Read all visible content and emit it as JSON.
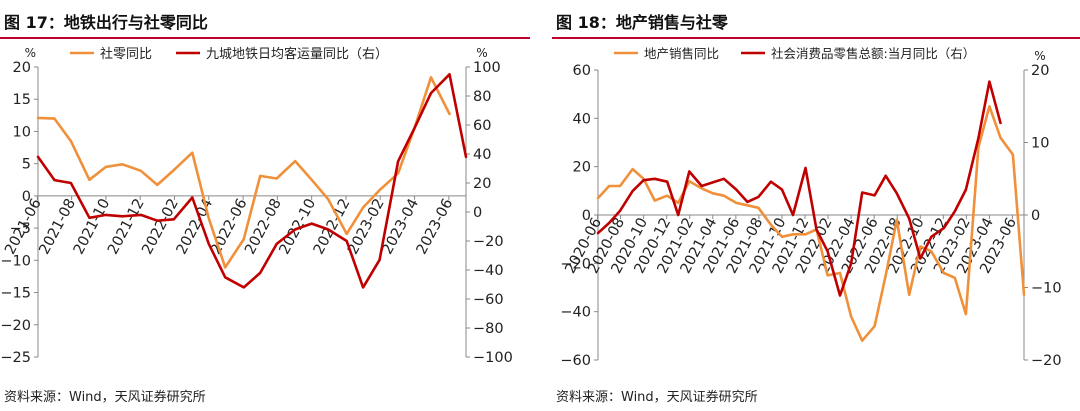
{
  "panels": [
    {
      "title": "图 17：地铁出行与社零同比",
      "source": "资料来源：Wind，天风证券研究所"
    },
    {
      "title": "图 18：地产销售与社零",
      "source": "资料来源：Wind，天风证券研究所"
    }
  ],
  "chart_data": [
    {
      "type": "line",
      "title": "图 17：地铁出行与社零同比",
      "x_tick_labels": [
        "2021-06",
        "2021-08",
        "2021-10",
        "2021-12",
        "2022-02",
        "2022-04",
        "2022-06",
        "2022-08",
        "2022-10",
        "2022-12",
        "2023-02",
        "2023-04",
        "2023-06"
      ],
      "x_range": [
        2021.42,
        2023.5
      ],
      "y_left": {
        "unit": "%",
        "ticks": [
          20,
          15,
          10,
          5,
          0,
          -5,
          -10,
          -15,
          -20,
          -25
        ],
        "range": [
          -25,
          20
        ]
      },
      "y_right": {
        "unit": "%",
        "ticks": [
          100,
          80,
          60,
          40,
          20,
          0,
          -20,
          -40,
          -60,
          -80,
          -100
        ],
        "range": [
          -100,
          100
        ]
      },
      "legend_position": "top-center",
      "series": [
        {
          "name": "社零同比",
          "axis": "left",
          "color": "#f0903a",
          "points": [
            [
              2021.42,
              12.1
            ],
            [
              2021.5,
              12.0
            ],
            [
              2021.58,
              8.5
            ],
            [
              2021.67,
              2.5
            ],
            [
              2021.75,
              4.5
            ],
            [
              2021.83,
              4.9
            ],
            [
              2021.92,
              3.9
            ],
            [
              2022.0,
              1.7
            ],
            [
              2022.08,
              4.0
            ],
            [
              2022.17,
              6.7
            ],
            [
              2022.25,
              -3.5
            ],
            [
              2022.33,
              -11.1
            ],
            [
              2022.42,
              -6.7
            ],
            [
              2022.5,
              3.1
            ],
            [
              2022.58,
              2.7
            ],
            [
              2022.67,
              5.4
            ],
            [
              2022.75,
              2.5
            ],
            [
              2022.83,
              -0.5
            ],
            [
              2022.92,
              -5.9
            ],
            [
              2023.0,
              -1.8
            ],
            [
              2023.08,
              0.9
            ],
            [
              2023.17,
              3.5
            ],
            [
              2023.25,
              10.6
            ],
            [
              2023.33,
              18.4
            ],
            [
              2023.42,
              12.7
            ]
          ]
        },
        {
          "name": "九城地铁日均客运量同比（右）",
          "axis": "right",
          "color": "#c00000",
          "points": [
            [
              2021.42,
              38
            ],
            [
              2021.5,
              22
            ],
            [
              2021.58,
              20
            ],
            [
              2021.67,
              -4
            ],
            [
              2021.75,
              -2
            ],
            [
              2021.83,
              -3
            ],
            [
              2021.92,
              -2
            ],
            [
              2022.0,
              -6
            ],
            [
              2022.08,
              -5
            ],
            [
              2022.17,
              10
            ],
            [
              2022.25,
              -22
            ],
            [
              2022.33,
              -45
            ],
            [
              2022.42,
              -52
            ],
            [
              2022.5,
              -42
            ],
            [
              2022.58,
              -22
            ],
            [
              2022.67,
              -12
            ],
            [
              2022.75,
              -8
            ],
            [
              2022.83,
              -12
            ],
            [
              2022.92,
              -20
            ],
            [
              2023.0,
              -52
            ],
            [
              2023.08,
              -33
            ],
            [
              2023.17,
              35
            ],
            [
              2023.25,
              58
            ],
            [
              2023.33,
              82
            ],
            [
              2023.42,
              95
            ],
            [
              2023.5,
              38
            ]
          ]
        }
      ]
    },
    {
      "type": "line",
      "title": "图 18：地产销售与社零",
      "x_tick_labels": [
        "2020-06",
        "2020-08",
        "2020-10",
        "2020-12",
        "2021-02",
        "2021-04",
        "2021-06",
        "2021-08",
        "2021-10",
        "2021-12",
        "2022-02",
        "2022-04",
        "2022-06",
        "2022-08",
        "2022-10",
        "2022-12",
        "2023-02",
        "2023-04",
        "2023-06"
      ],
      "x_range": [
        2020.42,
        2023.5
      ],
      "y_left": {
        "unit": "",
        "ticks": [
          60,
          40,
          20,
          0,
          -20,
          -40,
          -60
        ],
        "range": [
          -60,
          60
        ]
      },
      "y_right": {
        "unit": "%",
        "ticks": [
          20,
          10,
          0,
          -10,
          -20
        ],
        "range": [
          -20,
          20
        ]
      },
      "legend_position": "top-center",
      "series": [
        {
          "name": "地产销售同比",
          "axis": "left",
          "color": "#f0903a",
          "points": [
            [
              2020.42,
              7
            ],
            [
              2020.5,
              12
            ],
            [
              2020.58,
              12
            ],
            [
              2020.67,
              19
            ],
            [
              2020.75,
              15
            ],
            [
              2020.83,
              6
            ],
            [
              2020.92,
              8
            ],
            [
              2021.0,
              5
            ],
            [
              2021.08,
              14
            ],
            [
              2021.17,
              11
            ],
            [
              2021.25,
              9
            ],
            [
              2021.33,
              8
            ],
            [
              2021.42,
              5
            ],
            [
              2021.5,
              4
            ],
            [
              2021.58,
              3
            ],
            [
              2021.67,
              -4
            ],
            [
              2021.75,
              -9
            ],
            [
              2021.83,
              -8
            ],
            [
              2021.92,
              -8
            ],
            [
              2022.0,
              -6
            ],
            [
              2022.08,
              -25
            ],
            [
              2022.17,
              -24
            ],
            [
              2022.25,
              -42
            ],
            [
              2022.33,
              -52
            ],
            [
              2022.42,
              -46
            ],
            [
              2022.5,
              -25
            ],
            [
              2022.58,
              -2
            ],
            [
              2022.67,
              -33
            ],
            [
              2022.75,
              -13
            ],
            [
              2022.83,
              -15
            ],
            [
              2022.92,
              -24
            ],
            [
              2023.0,
              -26
            ],
            [
              2023.08,
              -41
            ],
            [
              2023.17,
              28
            ],
            [
              2023.25,
              45
            ],
            [
              2023.33,
              32
            ],
            [
              2023.42,
              25
            ],
            [
              2023.5,
              -33
            ]
          ]
        },
        {
          "name": "社会消费品零售总额:当月同比（右）",
          "axis": "right",
          "color": "#c00000",
          "points": [
            [
              2020.42,
              -2.5
            ],
            [
              2020.5,
              -1.1
            ],
            [
              2020.58,
              0.6
            ],
            [
              2020.67,
              3.3
            ],
            [
              2020.75,
              4.8
            ],
            [
              2020.83,
              5.0
            ],
            [
              2020.92,
              4.6
            ],
            [
              2021.0,
              0.0
            ],
            [
              2021.08,
              6.0
            ],
            [
              2021.17,
              4.0
            ],
            [
              2021.25,
              4.5
            ],
            [
              2021.33,
              5.0
            ],
            [
              2021.42,
              3.5
            ],
            [
              2021.5,
              1.8
            ],
            [
              2021.58,
              2.5
            ],
            [
              2021.67,
              4.6
            ],
            [
              2021.75,
              3.5
            ],
            [
              2021.83,
              0.0
            ],
            [
              2021.92,
              6.5
            ],
            [
              2022.0,
              -2.0
            ],
            [
              2022.08,
              -5.0
            ],
            [
              2022.17,
              -11.1
            ],
            [
              2022.25,
              -6.7
            ],
            [
              2022.33,
              3.1
            ],
            [
              2022.42,
              2.7
            ],
            [
              2022.5,
              5.4
            ],
            [
              2022.58,
              3.0
            ],
            [
              2022.67,
              -0.5
            ],
            [
              2022.75,
              -6.0
            ],
            [
              2022.83,
              -3.0
            ],
            [
              2022.92,
              -1.8
            ],
            [
              2023.0,
              0.5
            ],
            [
              2023.08,
              3.5
            ],
            [
              2023.17,
              10.6
            ],
            [
              2023.25,
              18.4
            ],
            [
              2023.33,
              12.7
            ]
          ]
        }
      ]
    }
  ]
}
